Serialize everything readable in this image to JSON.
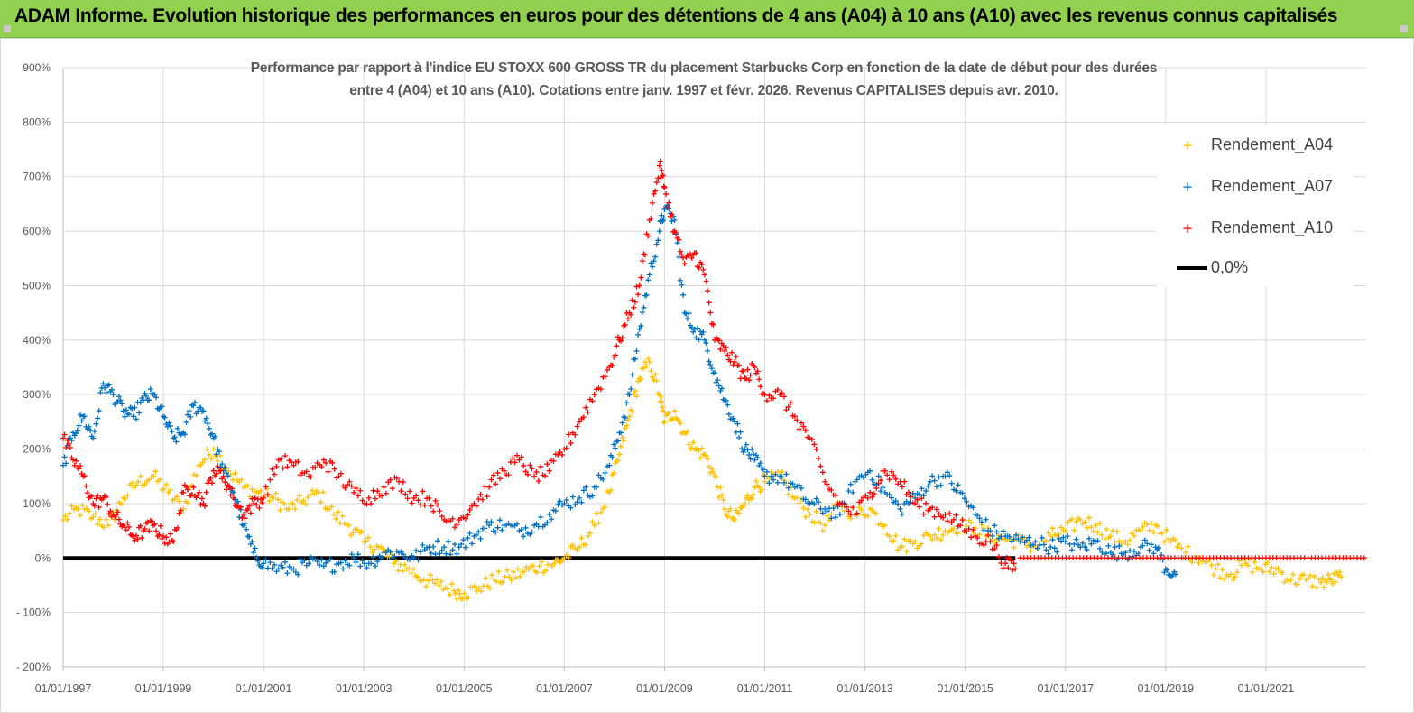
{
  "header": {
    "title": "ADAM Informe. Evolution historique des performances en euros pour des détentions de 4 ans (A04) à 10 ans (A10) avec les revenus connus capitalisés"
  },
  "colors": {
    "banner": "#92d050",
    "a04": "#ffc000",
    "a07": "#0070c0",
    "a10": "#ff0000",
    "zero": "#000000"
  },
  "chart_data": {
    "type": "scatter",
    "title_line1": "Performance par rapport à l'indice EU STOXX 600 GROSS TR  du placement Starbucks Corp en fonction de la date de début pour des durées",
    "title_line2": "entre 4 (A04) et 10 ans (A10).  Cotations entre janv. 1997 et févr. 2026. Revenus CAPITALISES depuis avr. 2010.",
    "xlabel": "",
    "ylabel": "",
    "xlim": [
      1997.0,
      2023.0
    ],
    "ylim": [
      -200,
      900
    ],
    "y_ticks": [
      {
        "value": 900,
        "label": "900%"
      },
      {
        "value": 800,
        "label": "800%"
      },
      {
        "value": 700,
        "label": "700%"
      },
      {
        "value": 600,
        "label": "600%"
      },
      {
        "value": 500,
        "label": "500%"
      },
      {
        "value": 400,
        "label": "400%"
      },
      {
        "value": 300,
        "label": "300%"
      },
      {
        "value": 200,
        "label": "200%"
      },
      {
        "value": 100,
        "label": "100%"
      },
      {
        "value": 0,
        "label": "0%"
      },
      {
        "value": -100,
        "label": "- 100%"
      },
      {
        "value": -200,
        "label": "- 200%"
      }
    ],
    "x_ticks": [
      {
        "value": 1997,
        "label": "01/01/1997"
      },
      {
        "value": 1999,
        "label": "01/01/1999"
      },
      {
        "value": 2001,
        "label": "01/01/2001"
      },
      {
        "value": 2003,
        "label": "01/01/2003"
      },
      {
        "value": 2005,
        "label": "01/01/2005"
      },
      {
        "value": 2007,
        "label": "01/01/2007"
      },
      {
        "value": 2009,
        "label": "01/01/2009"
      },
      {
        "value": 2011,
        "label": "01/01/2011"
      },
      {
        "value": 2013,
        "label": "01/01/2013"
      },
      {
        "value": 2015,
        "label": "01/01/2015"
      },
      {
        "value": 2017,
        "label": "01/01/2017"
      },
      {
        "value": 2019,
        "label": "01/01/2019"
      },
      {
        "value": 2021,
        "label": "01/01/2021"
      }
    ],
    "legend_position": "top-right",
    "series": [
      {
        "name": "Rendement_A04",
        "color": "#ffc000",
        "x": [
          1997.0,
          1997.3,
          1997.6,
          1997.9,
          1998.2,
          1998.5,
          1998.8,
          1999.1,
          1999.4,
          1999.7,
          2000.0,
          2000.3,
          2000.6,
          2000.9,
          2001.2,
          2001.5,
          2001.8,
          2002.1,
          2002.4,
          2002.7,
          2003.0,
          2003.3,
          2003.6,
          2003.9,
          2004.2,
          2004.5,
          2004.8,
          2005.0,
          2005.3,
          2005.6,
          2005.9,
          2006.2,
          2006.5,
          2006.8,
          2007.0,
          2007.3,
          2007.6,
          2007.9,
          2008.1,
          2008.3,
          2008.5,
          2008.7,
          2008.9,
          2009.0,
          2009.2,
          2009.4,
          2009.6,
          2009.8,
          2010.0,
          2010.2,
          2010.4,
          2010.6,
          2010.8,
          2011.0,
          2011.3,
          2011.6,
          2011.9,
          2012.2,
          2012.5,
          2012.8,
          2013.1,
          2013.4,
          2013.7,
          2014.0,
          2014.3,
          2014.6,
          2014.9,
          2015.2,
          2015.5,
          2015.8,
          2016.1,
          2016.4,
          2016.7,
          2017.0,
          2017.3,
          2017.6,
          2017.9,
          2018.2,
          2018.5,
          2018.8,
          2019.1,
          2019.4,
          2019.7,
          2020.0,
          2020.3,
          2020.6,
          2020.9,
          2021.2,
          2021.5,
          2021.8,
          2022.1,
          2022.3,
          2022.5
        ],
        "y": [
          70,
          90,
          75,
          60,
          110,
          140,
          150,
          120,
          90,
          170,
          200,
          160,
          130,
          120,
          110,
          90,
          105,
          120,
          80,
          60,
          30,
          20,
          -10,
          -20,
          -40,
          -50,
          -60,
          -65,
          -55,
          -40,
          -35,
          -25,
          -15,
          -10,
          0,
          20,
          60,
          120,
          190,
          260,
          330,
          360,
          300,
          250,
          270,
          230,
          200,
          190,
          150,
          90,
          70,
          100,
          130,
          140,
          150,
          110,
          80,
          60,
          100,
          80,
          90,
          60,
          20,
          30,
          40,
          50,
          60,
          55,
          40,
          35,
          30,
          20,
          40,
          50,
          70,
          60,
          40,
          30,
          50,
          60,
          30,
          10,
          0,
          -20,
          -30,
          -10,
          -20,
          -20,
          -40,
          -40,
          -45,
          -40,
          -35
        ]
      },
      {
        "name": "Rendement_A07",
        "color": "#0070c0",
        "x": [
          1997.0,
          1997.2,
          1997.4,
          1997.6,
          1997.8,
          1998.0,
          1998.2,
          1998.4,
          1998.6,
          1998.8,
          1999.0,
          1999.2,
          1999.4,
          1999.6,
          1999.8,
          2000.0,
          2000.2,
          2000.4,
          2000.6,
          2000.8,
          2001.0,
          2001.3,
          2001.6,
          2001.9,
          2002.2,
          2002.5,
          2002.8,
          2003.1,
          2003.4,
          2003.7,
          2004.0,
          2004.3,
          2004.6,
          2004.9,
          2005.2,
          2005.5,
          2005.8,
          2006.1,
          2006.4,
          2006.7,
          2007.0,
          2007.3,
          2007.6,
          2007.9,
          2008.1,
          2008.3,
          2008.5,
          2008.7,
          2008.9,
          2009.0,
          2009.2,
          2009.4,
          2009.6,
          2009.8,
          2010.0,
          2010.2,
          2010.4,
          2010.6,
          2010.8,
          2011.0,
          2011.3,
          2011.6,
          2011.9,
          2012.2,
          2012.5,
          2012.8,
          2013.1,
          2013.4,
          2013.7,
          2014.0,
          2014.3,
          2014.6,
          2014.9,
          2015.2,
          2015.5,
          2015.8,
          2016.1,
          2016.4,
          2016.7,
          2017.0,
          2017.3,
          2017.6,
          2017.9,
          2018.2,
          2018.5,
          2018.8,
          2019.0,
          2019.2
        ],
        "y": [
          170,
          230,
          260,
          220,
          320,
          300,
          270,
          260,
          290,
          300,
          260,
          220,
          230,
          280,
          270,
          220,
          160,
          120,
          60,
          10,
          -10,
          -20,
          -20,
          -10,
          -15,
          -10,
          0,
          -10,
          10,
          10,
          0,
          20,
          20,
          20,
          40,
          60,
          60,
          50,
          60,
          80,
          100,
          110,
          130,
          170,
          230,
          300,
          420,
          520,
          600,
          640,
          620,
          450,
          420,
          400,
          340,
          290,
          250,
          200,
          180,
          150,
          150,
          130,
          100,
          90,
          80,
          140,
          160,
          120,
          90,
          110,
          140,
          150,
          120,
          80,
          50,
          40,
          30,
          30,
          20,
          30,
          20,
          30,
          10,
          10,
          20,
          20,
          -20,
          -30
        ]
      },
      {
        "name": "Rendement_A10",
        "color": "#ff0000",
        "x": [
          1997.0,
          1997.2,
          1997.4,
          1997.6,
          1997.8,
          1998.0,
          1998.2,
          1998.4,
          1998.6,
          1998.8,
          1999.0,
          1999.2,
          1999.4,
          1999.6,
          1999.8,
          2000.0,
          2000.2,
          2000.4,
          2000.6,
          2000.8,
          2001.0,
          2001.3,
          2001.6,
          2001.9,
          2002.2,
          2002.5,
          2002.8,
          2003.1,
          2003.4,
          2003.7,
          2004.0,
          2004.3,
          2004.6,
          2004.9,
          2005.2,
          2005.5,
          2005.8,
          2006.1,
          2006.4,
          2006.7,
          2007.0,
          2007.3,
          2007.6,
          2007.9,
          2008.1,
          2008.3,
          2008.5,
          2008.7,
          2008.9,
          2009.0,
          2009.2,
          2009.4,
          2009.6,
          2009.8,
          2010.0,
          2010.2,
          2010.4,
          2010.6,
          2010.8,
          2011.0,
          2011.3,
          2011.6,
          2011.9,
          2012.2,
          2012.5,
          2012.8,
          2013.1,
          2013.4,
          2013.7,
          2014.0,
          2014.3,
          2014.6,
          2014.9,
          2015.2,
          2015.5,
          2015.8,
          2016.0
        ],
        "y": [
          220,
          180,
          150,
          100,
          110,
          80,
          60,
          40,
          50,
          60,
          40,
          30,
          120,
          130,
          100,
          160,
          150,
          110,
          80,
          100,
          110,
          180,
          170,
          150,
          180,
          150,
          120,
          110,
          130,
          140,
          110,
          110,
          70,
          70,
          100,
          130,
          160,
          180,
          150,
          160,
          200,
          250,
          300,
          350,
          400,
          450,
          500,
          620,
          720,
          680,
          600,
          540,
          560,
          520,
          400,
          380,
          360,
          330,
          350,
          300,
          300,
          260,
          220,
          140,
          100,
          80,
          120,
          160,
          140,
          100,
          90,
          80,
          60,
          40,
          30,
          -10,
          -20
        ]
      }
    ],
    "flat_segment": {
      "name": "Rendement_A10",
      "x_start": 2016.1,
      "x_end": 2023.0,
      "y": 0
    },
    "reference_line": {
      "name": "0,0%",
      "y": 0,
      "x_start": 1997.0,
      "x_end": 2016.0
    }
  }
}
